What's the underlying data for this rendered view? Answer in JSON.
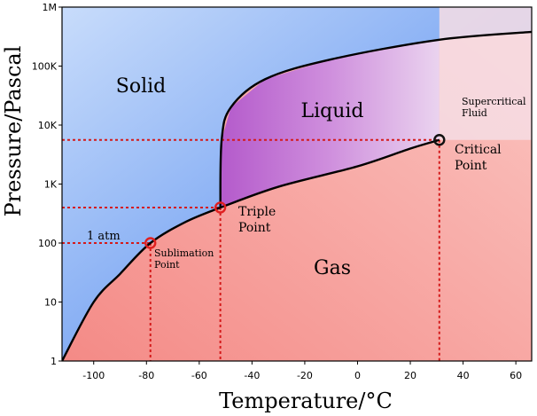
{
  "chart_data": {
    "type": "phase-diagram",
    "xlabel": "Temperature/°C",
    "ylabel": "Pressure/Pascal",
    "xlim": [
      -112,
      66
    ],
    "ylim_log10": [
      0,
      6
    ],
    "yscale": "log",
    "grid": false,
    "x_ticks": [
      -100,
      -80,
      -60,
      -40,
      -20,
      0,
      20,
      40,
      60
    ],
    "y_ticks": [
      {
        "value": 1,
        "label": "1"
      },
      {
        "value": 10,
        "label": "10"
      },
      {
        "value": 100,
        "label": "100"
      },
      {
        "value": 1000,
        "label": "1K"
      },
      {
        "value": 10000,
        "label": "10K"
      },
      {
        "value": 100000,
        "label": "100K"
      },
      {
        "value": 1000000,
        "label": "1M"
      }
    ],
    "regions": [
      {
        "label": "Solid",
        "color": "#6f9ff0"
      },
      {
        "label": "Liquid",
        "color": "#c572d6"
      },
      {
        "label": "Gas",
        "color": "#f7a3a0"
      },
      {
        "label": "Supercritical Fluid",
        "color": "#f5d4dd"
      }
    ],
    "curves": {
      "sublimation": [
        [
          -112,
          1
        ],
        [
          -100,
          10
        ],
        [
          -90,
          30
        ],
        [
          -78.5,
          100
        ],
        [
          -65,
          230
        ],
        [
          -52,
          400
        ]
      ],
      "vaporization": [
        [
          -52,
          400
        ],
        [
          -30,
          900
        ],
        [
          0,
          2000
        ],
        [
          20,
          4000
        ],
        [
          31,
          5600
        ]
      ],
      "melting": [
        [
          -52,
          400
        ],
        [
          -51.5,
          5600
        ],
        [
          -48,
          20000
        ],
        [
          -35,
          60000
        ],
        [
          -10,
          130000
        ],
        [
          31,
          280000
        ],
        [
          66,
          380000
        ]
      ]
    },
    "points": [
      {
        "name": "Triple Point",
        "x": -52,
        "y": 400,
        "color": "#e02020"
      },
      {
        "name": "Sublimation Point",
        "x": -78.5,
        "y": 100,
        "color": "#e02020"
      },
      {
        "name": "Critical Point",
        "x": 31,
        "y": 5600,
        "color": "#111111"
      }
    ],
    "annotations": {
      "solid": "Solid",
      "liquid": "Liquid",
      "gas": "Gas",
      "supercritical": [
        "Supercritical",
        "Fluid"
      ],
      "critical_point": [
        "Critical",
        "Point"
      ],
      "triple_point": [
        "Triple",
        "Point"
      ],
      "sublimation_point": [
        "Sublimation",
        "Point"
      ],
      "one_atm": "1 atm"
    },
    "colors": {
      "curve": "#000000",
      "dotted_line": "#d41a1a",
      "frame_bg": "#000000"
    }
  }
}
